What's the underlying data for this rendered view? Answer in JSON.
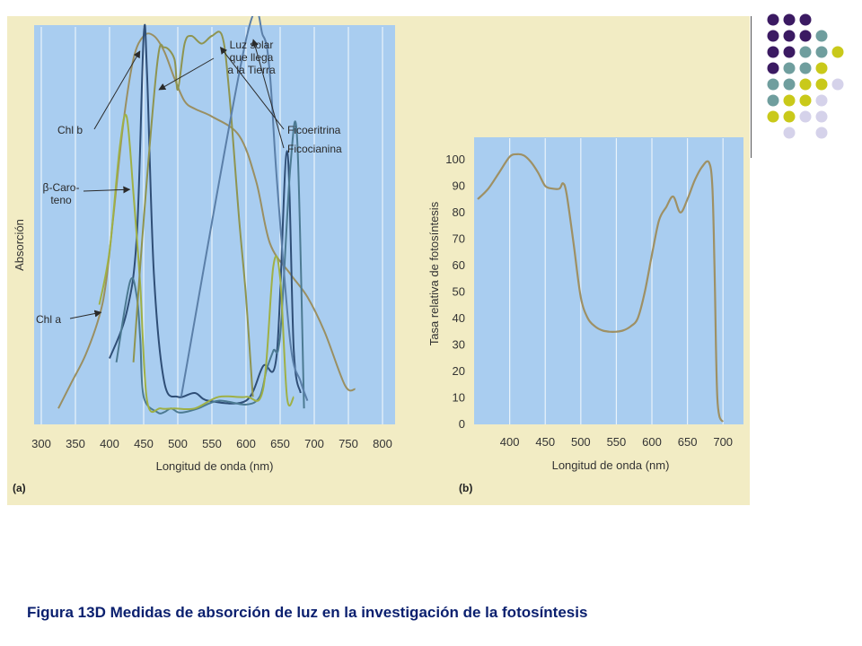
{
  "caption": "Figura 13D Medidas de absorción de luz en la investigación de la fotosíntesis",
  "decor_colors": {
    "purple": "#3b1a62",
    "teal": "#6f9e9e",
    "yellow": "#c9c91a",
    "lilac": "#d5d2ea"
  },
  "chart_data": [
    {
      "type": "line",
      "panel_label": "(a)",
      "xlabel": "Longitud de onda (nm)",
      "ylabel": "Absorción",
      "xlim": [
        300,
        800
      ],
      "ylim": [
        0,
        1
      ],
      "x_ticks": [
        300,
        350,
        400,
        450,
        500,
        550,
        600,
        650,
        700,
        750,
        800
      ],
      "series": [
        {
          "name": "Luz solar que llega a la Tierra",
          "color": "#9a8f62",
          "x": [
            325,
            345,
            365,
            385,
            395,
            405,
            420,
            435,
            450,
            465,
            480,
            495,
            510,
            525,
            550,
            590,
            615,
            635,
            665,
            690,
            715,
            745,
            760
          ],
          "y": [
            0.03,
            0.1,
            0.17,
            0.27,
            0.36,
            0.52,
            0.77,
            0.94,
            1.0,
            1.0,
            0.96,
            0.89,
            0.83,
            0.81,
            0.79,
            0.74,
            0.62,
            0.46,
            0.38,
            0.32,
            0.23,
            0.09,
            0.08
          ]
        },
        {
          "name": "Chl b",
          "color": "#2f4e76",
          "x": [
            400,
            425,
            440,
            450,
            455,
            465,
            480,
            500,
            525,
            545,
            600,
            625,
            645,
            660,
            670,
            680
          ],
          "y": [
            0.16,
            0.28,
            0.48,
            1.0,
            0.9,
            0.38,
            0.1,
            0.06,
            0.07,
            0.05,
            0.05,
            0.14,
            0.17,
            0.7,
            0.18,
            0.07
          ]
        },
        {
          "name": "Chl a",
          "color": "#4c7a92",
          "x": [
            410,
            430,
            440,
            445,
            450,
            470,
            480,
            490,
            500,
            510,
            530,
            560,
            600,
            620,
            630,
            640,
            650,
            665,
            675,
            685
          ],
          "y": [
            0.15,
            0.36,
            0.32,
            0.21,
            0.06,
            0.02,
            0.02,
            0.03,
            0.02,
            0.02,
            0.03,
            0.05,
            0.04,
            0.06,
            0.13,
            0.18,
            0.22,
            0.66,
            0.73,
            0.03
          ]
        },
        {
          "name": "β-Caroteno",
          "color": "#9fb045",
          "x": [
            385,
            400,
            415,
            425,
            435,
            445,
            455,
            475,
            495,
            525,
            560,
            600,
            625,
            640,
            650,
            660,
            670
          ],
          "y": [
            0.3,
            0.44,
            0.71,
            0.79,
            0.59,
            0.35,
            0.05,
            0.03,
            0.03,
            0.03,
            0.06,
            0.06,
            0.08,
            0.4,
            0.37,
            0.06,
            0.06
          ]
        },
        {
          "name": "Ficoeritrina",
          "color": "#8e9450",
          "x": [
            435,
            450,
            470,
            480,
            495,
            500,
            510,
            520,
            535,
            550,
            565,
            575,
            590,
            600,
            610
          ],
          "y": [
            0.15,
            0.52,
            0.93,
            0.97,
            0.94,
            0.86,
            0.98,
            1.0,
            0.98,
            1.0,
            1.0,
            0.86,
            0.52,
            0.32,
            0.06
          ]
        },
        {
          "name": "Ficocianina",
          "color": "#5b7fa8",
          "x": [
            505,
            600,
            625,
            635,
            645,
            665,
            680,
            690
          ],
          "y": [
            0.06,
            0.99,
            1.0,
            0.9,
            0.63,
            0.2,
            0.1,
            0.05
          ]
        }
      ],
      "annotations": [
        {
          "target": "Luz solar que llega a la Tierra",
          "lines": [
            "Luz solar",
            "que llega",
            "a la Tierra"
          ]
        },
        {
          "target": "Chl b",
          "lines": [
            "Chl b"
          ]
        },
        {
          "target": "β-Caroteno",
          "lines": [
            "β-Caro-",
            "teno"
          ]
        },
        {
          "target": "Chl a",
          "lines": [
            "Chl a"
          ]
        },
        {
          "target": "Ficoeritrina",
          "lines": [
            "Ficoeritrina"
          ]
        },
        {
          "target": "Ficocianina",
          "lines": [
            "Ficocianina"
          ]
        }
      ]
    },
    {
      "type": "line",
      "panel_label": "(b)",
      "xlabel": "Longitud de onda (nm)",
      "ylabel": "Tasa relativa de fotosíntesis",
      "xlim": [
        355,
        725
      ],
      "ylim": [
        0,
        105
      ],
      "x_ticks": [
        400,
        450,
        500,
        550,
        600,
        650,
        700
      ],
      "y_ticks": [
        0,
        10,
        20,
        30,
        40,
        50,
        60,
        70,
        80,
        90,
        100
      ],
      "series": [
        {
          "name": "",
          "color": "#9e9064",
          "x": [
            355,
            370,
            385,
            400,
            410,
            420,
            430,
            440,
            450,
            460,
            470,
            475,
            480,
            490,
            500,
            510,
            520,
            530,
            540,
            550,
            560,
            570,
            580,
            590,
            600,
            610,
            620,
            630,
            640,
            650,
            660,
            670,
            680,
            685,
            688,
            690,
            692,
            695,
            700
          ],
          "y": [
            85,
            89,
            95,
            101,
            102,
            101.5,
            99,
            95,
            90,
            89,
            89,
            91,
            87,
            68,
            48,
            40,
            37,
            35.5,
            35,
            35,
            35.5,
            37,
            40,
            50,
            64,
            77,
            82,
            86,
            80,
            85,
            92,
            97,
            99,
            90,
            60,
            30,
            10,
            3,
            1
          ]
        }
      ]
    }
  ]
}
